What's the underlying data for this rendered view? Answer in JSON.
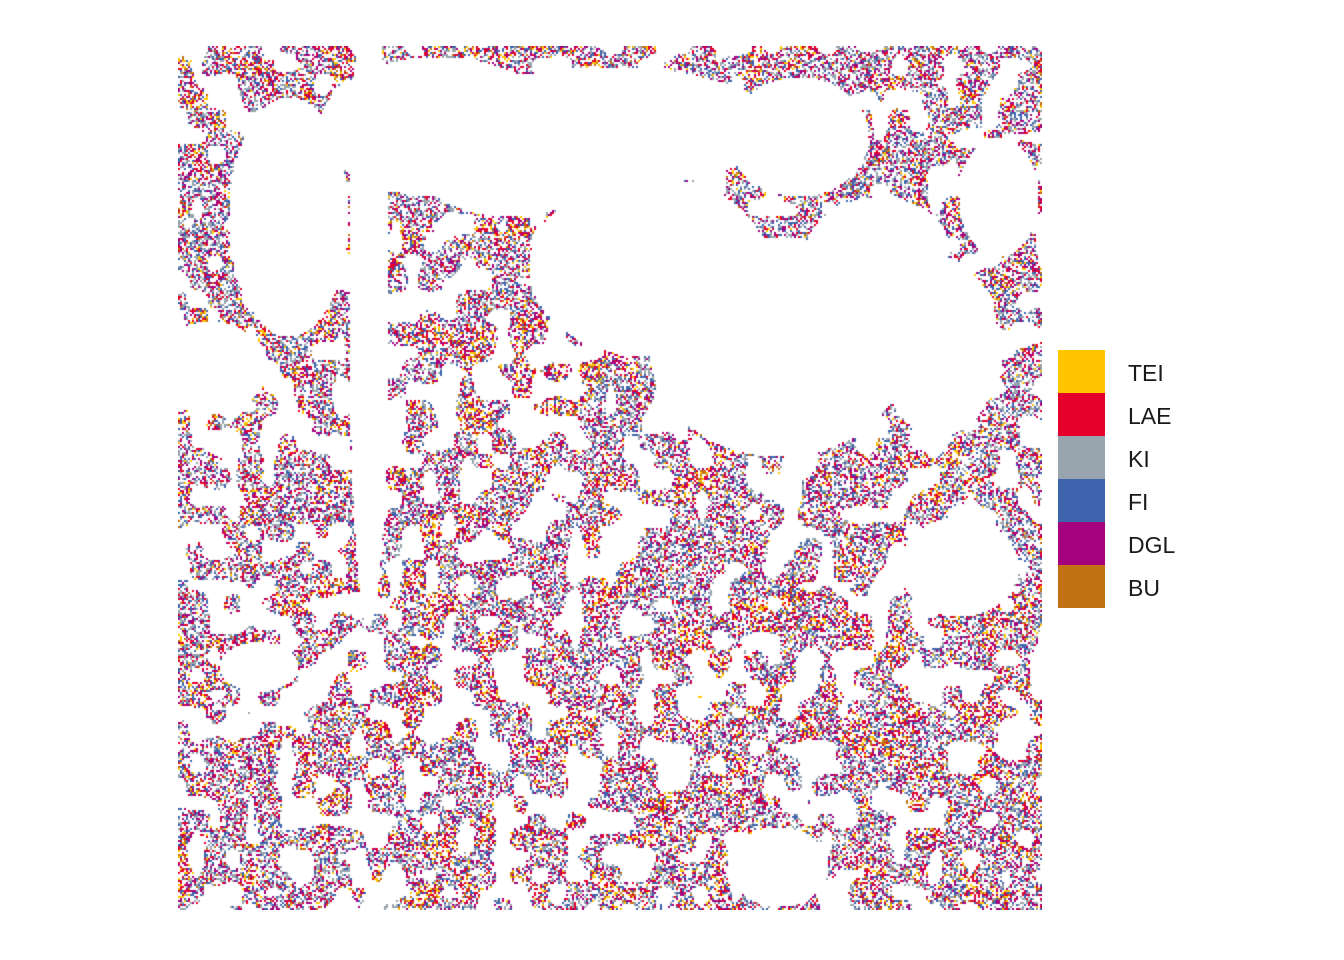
{
  "map": {
    "type": "categorical-raster"
  },
  "legend": {
    "items": [
      {
        "label": "TEI",
        "color": "#FFC600"
      },
      {
        "label": "LAE",
        "color": "#E4002B"
      },
      {
        "label": "KI",
        "color": "#98A4AE"
      },
      {
        "label": "FI",
        "color": "#3E64AD"
      },
      {
        "label": "DGL",
        "color": "#A5007D"
      },
      {
        "label": "BU",
        "color": "#C37213"
      }
    ]
  }
}
